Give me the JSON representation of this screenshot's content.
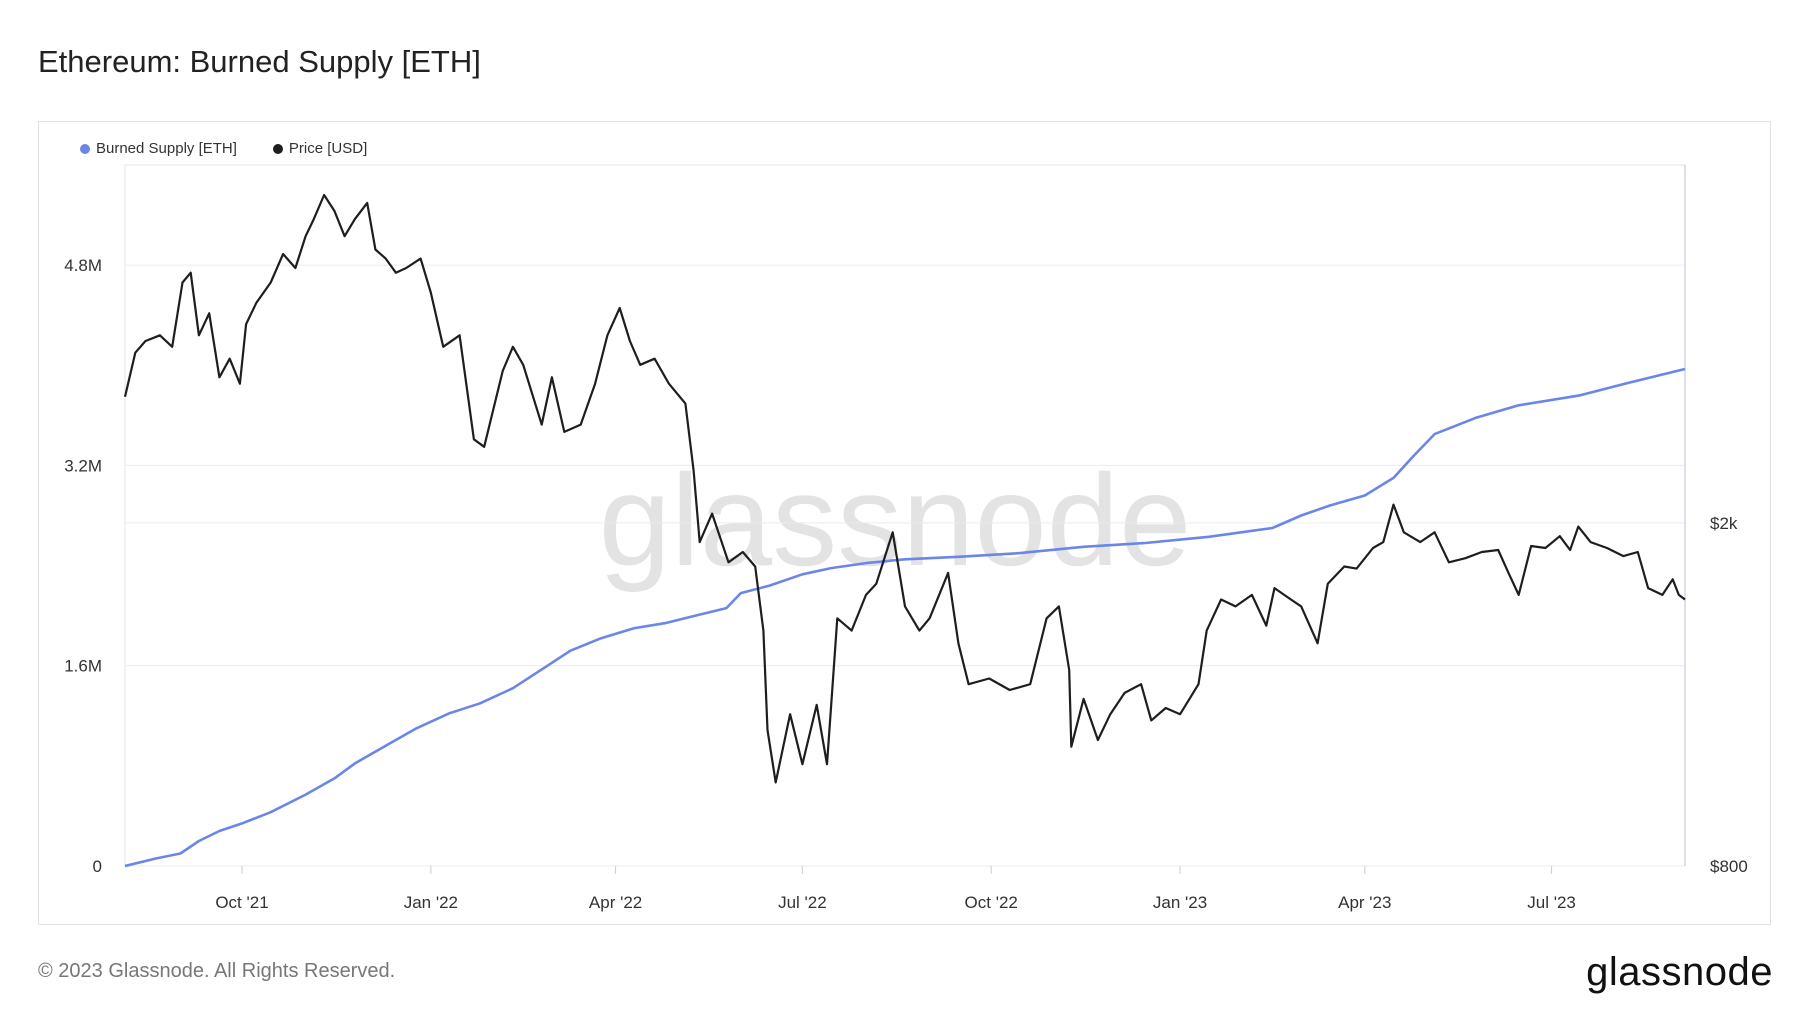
{
  "title": "Ethereum: Burned Supply [ETH]",
  "footer": "© 2023 Glassnode. All Rights Reserved.",
  "brand": "glassnode",
  "watermark": "glassnode",
  "chart_data": {
    "type": "line",
    "title": "Ethereum: Burned Supply [ETH]",
    "legend_position": "top-left",
    "grid": true,
    "colors": {
      "burned": "#6b86e8",
      "price": "#1e1e1e"
    },
    "x_ticks": [
      "Oct '21",
      "Jan '22",
      "Apr '22",
      "Jul '22",
      "Oct '22",
      "Jan '23",
      "Apr '23",
      "Jul '23"
    ],
    "x_range": [
      "2021-08-05",
      "2023-09-04"
    ],
    "y_left": {
      "label": "",
      "ticks": [
        "0",
        "1.6M",
        "3.2M",
        "4.8M"
      ],
      "range": [
        0,
        5600000
      ]
    },
    "y_right": {
      "label": "",
      "ticks": [
        "$800",
        "$2k"
      ],
      "scale": "log",
      "range": [
        800,
        5200
      ]
    },
    "series": [
      {
        "name": "Burned Supply [ETH]",
        "axis": "left",
        "points": [
          [
            "2021-08-05",
            0
          ],
          [
            "2021-08-20",
            60000
          ],
          [
            "2021-09-01",
            100000
          ],
          [
            "2021-09-10",
            200000
          ],
          [
            "2021-09-20",
            280000
          ],
          [
            "2021-10-01",
            340000
          ],
          [
            "2021-10-15",
            430000
          ],
          [
            "2021-11-01",
            570000
          ],
          [
            "2021-11-15",
            700000
          ],
          [
            "2021-11-25",
            820000
          ],
          [
            "2021-12-10",
            960000
          ],
          [
            "2021-12-25",
            1100000
          ],
          [
            "2022-01-10",
            1220000
          ],
          [
            "2022-01-25",
            1300000
          ],
          [
            "2022-02-10",
            1420000
          ],
          [
            "2022-02-25",
            1580000
          ],
          [
            "2022-03-10",
            1720000
          ],
          [
            "2022-03-25",
            1820000
          ],
          [
            "2022-04-10",
            1900000
          ],
          [
            "2022-04-25",
            1940000
          ],
          [
            "2022-05-10",
            2000000
          ],
          [
            "2022-05-25",
            2060000
          ],
          [
            "2022-06-01",
            2180000
          ],
          [
            "2022-06-15",
            2240000
          ],
          [
            "2022-07-01",
            2330000
          ],
          [
            "2022-07-15",
            2380000
          ],
          [
            "2022-08-01",
            2420000
          ],
          [
            "2022-08-20",
            2450000
          ],
          [
            "2022-09-15",
            2470000
          ],
          [
            "2022-10-15",
            2500000
          ],
          [
            "2022-11-15",
            2550000
          ],
          [
            "2022-12-15",
            2580000
          ],
          [
            "2023-01-15",
            2630000
          ],
          [
            "2023-02-15",
            2700000
          ],
          [
            "2023-03-01",
            2800000
          ],
          [
            "2023-03-15",
            2880000
          ],
          [
            "2023-04-01",
            2960000
          ],
          [
            "2023-04-15",
            3100000
          ],
          [
            "2023-04-25",
            3280000
          ],
          [
            "2023-05-05",
            3450000
          ],
          [
            "2023-05-25",
            3580000
          ],
          [
            "2023-06-15",
            3680000
          ],
          [
            "2023-07-15",
            3760000
          ],
          [
            "2023-08-05",
            3850000
          ],
          [
            "2023-08-25",
            3930000
          ],
          [
            "2023-09-04",
            3970000
          ]
        ]
      },
      {
        "name": "Price [USD]",
        "axis": "right",
        "points": [
          [
            "2021-08-05",
            2800
          ],
          [
            "2021-08-10",
            3150
          ],
          [
            "2021-08-15",
            3250
          ],
          [
            "2021-08-22",
            3300
          ],
          [
            "2021-08-28",
            3200
          ],
          [
            "2021-09-02",
            3800
          ],
          [
            "2021-09-06",
            3900
          ],
          [
            "2021-09-10",
            3300
          ],
          [
            "2021-09-15",
            3500
          ],
          [
            "2021-09-20",
            2950
          ],
          [
            "2021-09-25",
            3100
          ],
          [
            "2021-09-30",
            2900
          ],
          [
            "2021-10-03",
            3400
          ],
          [
            "2021-10-08",
            3600
          ],
          [
            "2021-10-15",
            3800
          ],
          [
            "2021-10-21",
            4100
          ],
          [
            "2021-10-27",
            3950
          ],
          [
            "2021-11-01",
            4300
          ],
          [
            "2021-11-05",
            4500
          ],
          [
            "2021-11-10",
            4800
          ],
          [
            "2021-11-15",
            4600
          ],
          [
            "2021-11-20",
            4300
          ],
          [
            "2021-11-25",
            4500
          ],
          [
            "2021-12-01",
            4700
          ],
          [
            "2021-12-05",
            4150
          ],
          [
            "2021-12-10",
            4050
          ],
          [
            "2021-12-15",
            3900
          ],
          [
            "2021-12-20",
            3950
          ],
          [
            "2021-12-27",
            4050
          ],
          [
            "2022-01-01",
            3700
          ],
          [
            "2022-01-07",
            3200
          ],
          [
            "2022-01-15",
            3300
          ],
          [
            "2022-01-22",
            2500
          ],
          [
            "2022-01-27",
            2450
          ],
          [
            "2022-02-05",
            3000
          ],
          [
            "2022-02-10",
            3200
          ],
          [
            "2022-02-15",
            3050
          ],
          [
            "2022-02-24",
            2600
          ],
          [
            "2022-03-01",
            2950
          ],
          [
            "2022-03-07",
            2550
          ],
          [
            "2022-03-15",
            2600
          ],
          [
            "2022-03-22",
            2900
          ],
          [
            "2022-03-28",
            3300
          ],
          [
            "2022-04-03",
            3550
          ],
          [
            "2022-04-08",
            3250
          ],
          [
            "2022-04-13",
            3050
          ],
          [
            "2022-04-20",
            3100
          ],
          [
            "2022-04-27",
            2900
          ],
          [
            "2022-05-05",
            2750
          ],
          [
            "2022-05-09",
            2300
          ],
          [
            "2022-05-12",
            1900
          ],
          [
            "2022-05-18",
            2050
          ],
          [
            "2022-05-26",
            1800
          ],
          [
            "2022-06-02",
            1850
          ],
          [
            "2022-06-08",
            1780
          ],
          [
            "2022-06-12",
            1500
          ],
          [
            "2022-06-14",
            1150
          ],
          [
            "2022-06-18",
            1000
          ],
          [
            "2022-06-25",
            1200
          ],
          [
            "2022-07-01",
            1050
          ],
          [
            "2022-07-08",
            1230
          ],
          [
            "2022-07-13",
            1050
          ],
          [
            "2022-07-18",
            1550
          ],
          [
            "2022-07-25",
            1500
          ],
          [
            "2022-08-01",
            1650
          ],
          [
            "2022-08-06",
            1700
          ],
          [
            "2022-08-14",
            1950
          ],
          [
            "2022-08-20",
            1600
          ],
          [
            "2022-08-27",
            1500
          ],
          [
            "2022-09-01",
            1550
          ],
          [
            "2022-09-10",
            1750
          ],
          [
            "2022-09-15",
            1450
          ],
          [
            "2022-09-20",
            1300
          ],
          [
            "2022-09-30",
            1320
          ],
          [
            "2022-10-10",
            1280
          ],
          [
            "2022-10-20",
            1300
          ],
          [
            "2022-10-28",
            1550
          ],
          [
            "2022-11-03",
            1600
          ],
          [
            "2022-11-08",
            1350
          ],
          [
            "2022-11-09",
            1100
          ],
          [
            "2022-11-15",
            1250
          ],
          [
            "2022-11-22",
            1120
          ],
          [
            "2022-11-28",
            1200
          ],
          [
            "2022-12-05",
            1270
          ],
          [
            "2022-12-13",
            1300
          ],
          [
            "2022-12-18",
            1180
          ],
          [
            "2022-12-25",
            1220
          ],
          [
            "2023-01-01",
            1200
          ],
          [
            "2023-01-10",
            1300
          ],
          [
            "2023-01-14",
            1500
          ],
          [
            "2023-01-21",
            1630
          ],
          [
            "2023-01-28",
            1600
          ],
          [
            "2023-02-05",
            1650
          ],
          [
            "2023-02-12",
            1520
          ],
          [
            "2023-02-16",
            1680
          ],
          [
            "2023-02-24",
            1630
          ],
          [
            "2023-03-01",
            1600
          ],
          [
            "2023-03-09",
            1450
          ],
          [
            "2023-03-14",
            1700
          ],
          [
            "2023-03-22",
            1780
          ],
          [
            "2023-03-28",
            1770
          ],
          [
            "2023-04-05",
            1870
          ],
          [
            "2023-04-10",
            1900
          ],
          [
            "2023-04-15",
            2100
          ],
          [
            "2023-04-20",
            1950
          ],
          [
            "2023-04-28",
            1900
          ],
          [
            "2023-05-05",
            1950
          ],
          [
            "2023-05-12",
            1800
          ],
          [
            "2023-05-20",
            1820
          ],
          [
            "2023-05-28",
            1850
          ],
          [
            "2023-06-05",
            1860
          ],
          [
            "2023-06-10",
            1750
          ],
          [
            "2023-06-15",
            1650
          ],
          [
            "2023-06-21",
            1880
          ],
          [
            "2023-06-28",
            1870
          ],
          [
            "2023-07-05",
            1930
          ],
          [
            "2023-07-10",
            1860
          ],
          [
            "2023-07-14",
            1980
          ],
          [
            "2023-07-20",
            1900
          ],
          [
            "2023-07-28",
            1870
          ],
          [
            "2023-08-05",
            1830
          ],
          [
            "2023-08-12",
            1850
          ],
          [
            "2023-08-17",
            1680
          ],
          [
            "2023-08-24",
            1650
          ],
          [
            "2023-08-29",
            1720
          ],
          [
            "2023-09-01",
            1650
          ],
          [
            "2023-09-04",
            1630
          ]
        ]
      }
    ]
  }
}
